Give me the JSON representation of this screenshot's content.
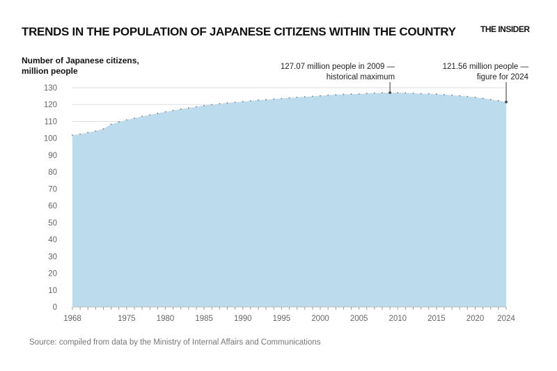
{
  "title": "TRENDS IN THE POPULATION OF JAPANESE CITIZENS WITHIN THE COUNTRY",
  "brand": "THE INSIDER",
  "source": "Source: compiled from data by the Ministry of Internal Affairs and Communications",
  "chart_data": {
    "type": "area",
    "ylabel_lines": [
      "Number of Japanese citizens,",
      "million people"
    ],
    "ylim": [
      0,
      130
    ],
    "yticks": [
      0,
      10,
      20,
      30,
      40,
      50,
      60,
      70,
      80,
      90,
      100,
      110,
      120,
      130
    ],
    "xlim": [
      1968,
      2024
    ],
    "xticks": [
      1968,
      1975,
      1980,
      1985,
      1990,
      1995,
      2000,
      2005,
      2010,
      2015,
      2020,
      2024
    ],
    "grid": true,
    "fill_color": "#bcdcee",
    "x": [
      1968,
      1969,
      1970,
      1971,
      1972,
      1973,
      1974,
      1975,
      1976,
      1977,
      1978,
      1979,
      1980,
      1981,
      1982,
      1983,
      1984,
      1985,
      1986,
      1987,
      1988,
      1989,
      1990,
      1991,
      1992,
      1993,
      1994,
      1995,
      1996,
      1997,
      1998,
      1999,
      2000,
      2001,
      2002,
      2003,
      2004,
      2005,
      2006,
      2007,
      2008,
      2009,
      2010,
      2011,
      2012,
      2013,
      2014,
      2015,
      2016,
      2017,
      2018,
      2019,
      2020,
      2021,
      2022,
      2023,
      2024
    ],
    "values": [
      101.9,
      102.5,
      103.4,
      104.3,
      105.6,
      108.4,
      109.7,
      110.9,
      112.0,
      113.0,
      113.9,
      114.8,
      115.7,
      116.5,
      117.3,
      118.0,
      118.7,
      119.4,
      120.0,
      120.5,
      121.0,
      121.4,
      121.8,
      122.2,
      122.6,
      122.9,
      123.3,
      123.6,
      123.9,
      124.3,
      124.6,
      124.9,
      125.2,
      125.6,
      125.8,
      126.1,
      126.2,
      126.3,
      126.6,
      126.8,
      127.0,
      127.07,
      127.06,
      126.9,
      126.7,
      126.5,
      126.4,
      126.2,
      125.9,
      125.6,
      125.2,
      124.8,
      124.3,
      123.7,
      123.0,
      122.3,
      121.56
    ],
    "annotations": [
      {
        "x": 2009,
        "y": 127.07,
        "lines": [
          "127.07 million people in 2009 —",
          "historical maximum"
        ]
      },
      {
        "x": 2024,
        "y": 121.56,
        "lines": [
          "121.56 million people —",
          "figure for 2024"
        ]
      }
    ]
  }
}
